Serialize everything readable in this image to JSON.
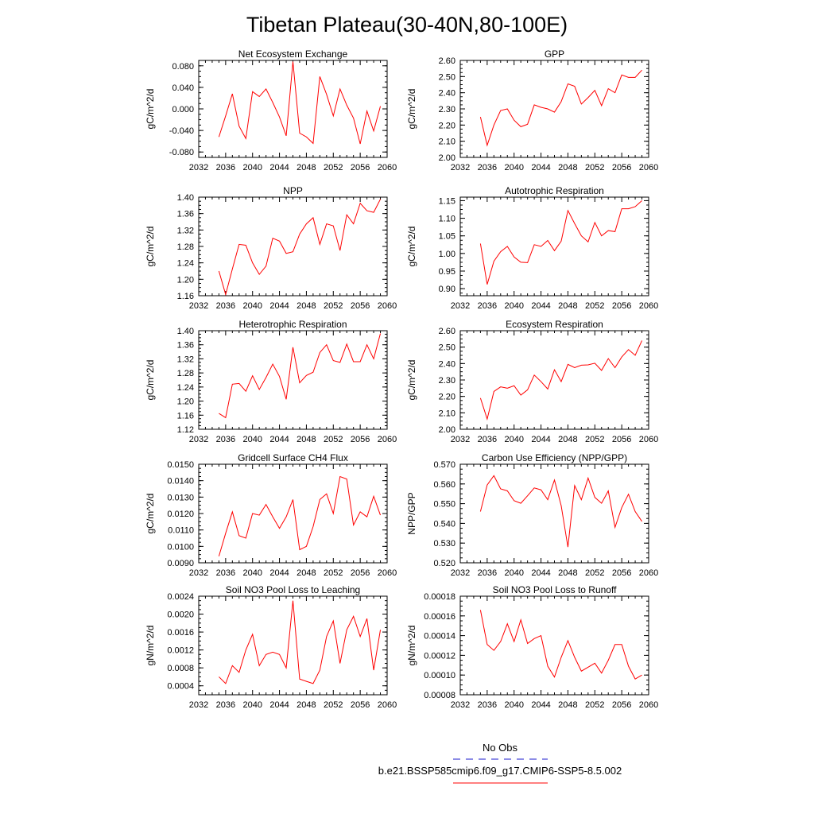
{
  "figure": {
    "title": "Tibetan Plateau(30-40N,80-100E)",
    "legend": {
      "obs_label": "No Obs",
      "obs_color": "#1a1acc",
      "model_label": "b.e21.BSSP585cmip6.f09_g17.CMIP6-SSP5-8.5.002",
      "model_color": "#ff0000"
    }
  },
  "chart_data": [
    {
      "type": "line",
      "title": "Net Ecosystem Exchange",
      "ylabel": "gC/m^2/d",
      "xlim": [
        2032,
        2060
      ],
      "xticks": [
        "2032",
        "2036",
        "2040",
        "2044",
        "2048",
        "2052",
        "2056",
        "2060"
      ],
      "ylim": [
        -0.09,
        0.09
      ],
      "yticks": [
        "-0.080",
        "-0.040",
        "0.000",
        "0.040",
        "0.080"
      ],
      "x": [
        2035,
        2036,
        2037,
        2038,
        2039,
        2040,
        2041,
        2042,
        2043,
        2044,
        2045,
        2046,
        2047,
        2048,
        2049,
        2050,
        2051,
        2052,
        2053,
        2054,
        2055,
        2056,
        2057,
        2058,
        2059
      ],
      "series": [
        {
          "color": "#ff0000",
          "values": [
            -0.052,
            -0.013,
            0.028,
            -0.032,
            -0.055,
            0.032,
            0.023,
            0.037,
            0.012,
            -0.015,
            -0.05,
            0.088,
            -0.045,
            -0.052,
            -0.064,
            0.06,
            0.027,
            -0.013,
            0.037,
            0.007,
            -0.017,
            -0.065,
            -0.004,
            -0.041,
            0.005
          ]
        }
      ]
    },
    {
      "type": "line",
      "title": "GPP",
      "ylabel": "gC/m^2/d",
      "xlim": [
        2032,
        2060
      ],
      "xticks": [
        "2032",
        "2036",
        "2040",
        "2044",
        "2048",
        "2052",
        "2056",
        "2060"
      ],
      "ylim": [
        2.0,
        2.6
      ],
      "yticks": [
        "2.00",
        "2.10",
        "2.20",
        "2.30",
        "2.40",
        "2.50",
        "2.60"
      ],
      "x": [
        2035,
        2036,
        2037,
        2038,
        2039,
        2040,
        2041,
        2042,
        2043,
        2044,
        2045,
        2046,
        2047,
        2048,
        2049,
        2050,
        2051,
        2052,
        2053,
        2054,
        2055,
        2056,
        2057,
        2058,
        2059
      ],
      "series": [
        {
          "color": "#ff0000",
          "values": [
            2.25,
            2.075,
            2.2,
            2.29,
            2.3,
            2.23,
            2.19,
            2.205,
            2.325,
            2.31,
            2.3,
            2.28,
            2.345,
            2.455,
            2.44,
            2.33,
            2.37,
            2.415,
            2.32,
            2.425,
            2.4,
            2.51,
            2.495,
            2.495,
            2.54
          ]
        }
      ]
    },
    {
      "type": "line",
      "title": "NPP",
      "ylabel": "gC/m^2/d",
      "xlim": [
        2032,
        2060
      ],
      "xticks": [
        "2032",
        "2036",
        "2040",
        "2044",
        "2048",
        "2052",
        "2056",
        "2060"
      ],
      "ylim": [
        1.16,
        1.4
      ],
      "yticks": [
        "1.16",
        "1.20",
        "1.24",
        "1.28",
        "1.32",
        "1.36",
        "1.40"
      ],
      "x": [
        2035,
        2036,
        2037,
        2038,
        2039,
        2040,
        2041,
        2042,
        2043,
        2044,
        2045,
        2046,
        2047,
        2048,
        2049,
        2050,
        2051,
        2052,
        2053,
        2054,
        2055,
        2056,
        2057,
        2058,
        2059
      ],
      "series": [
        {
          "color": "#ff0000",
          "values": [
            1.22,
            1.163,
            1.225,
            1.285,
            1.283,
            1.24,
            1.212,
            1.232,
            1.3,
            1.293,
            1.263,
            1.267,
            1.31,
            1.335,
            1.35,
            1.285,
            1.335,
            1.33,
            1.27,
            1.357,
            1.335,
            1.385,
            1.367,
            1.363,
            1.395
          ]
        }
      ]
    },
    {
      "type": "line",
      "title": "Autotrophic Respiration",
      "ylabel": "gC/m^2/d",
      "xlim": [
        2032,
        2060
      ],
      "xticks": [
        "2032",
        "2036",
        "2040",
        "2044",
        "2048",
        "2052",
        "2056",
        "2060"
      ],
      "ylim": [
        0.88,
        1.16
      ],
      "yticks": [
        "0.90",
        "0.95",
        "1.00",
        "1.05",
        "1.10",
        "1.15"
      ],
      "x": [
        2035,
        2036,
        2037,
        2038,
        2039,
        2040,
        2041,
        2042,
        2043,
        2044,
        2045,
        2046,
        2047,
        2048,
        2049,
        2050,
        2051,
        2052,
        2053,
        2054,
        2055,
        2056,
        2057,
        2058,
        2059
      ],
      "series": [
        {
          "color": "#ff0000",
          "values": [
            1.028,
            0.912,
            0.978,
            1.005,
            1.02,
            0.99,
            0.975,
            0.974,
            1.025,
            1.02,
            1.037,
            1.008,
            1.035,
            1.122,
            1.085,
            1.05,
            1.033,
            1.088,
            1.05,
            1.065,
            1.062,
            1.127,
            1.127,
            1.133,
            1.15
          ]
        }
      ]
    },
    {
      "type": "line",
      "title": "Heterotrophic Respiration",
      "ylabel": "gC/m^2/d",
      "xlim": [
        2032,
        2060
      ],
      "xticks": [
        "2032",
        "2036",
        "2040",
        "2044",
        "2048",
        "2052",
        "2056",
        "2060"
      ],
      "ylim": [
        1.12,
        1.4
      ],
      "yticks": [
        "1.12",
        "1.16",
        "1.20",
        "1.24",
        "1.28",
        "1.32",
        "1.36",
        "1.40"
      ],
      "x": [
        2035,
        2036,
        2037,
        2038,
        2039,
        2040,
        2041,
        2042,
        2043,
        2044,
        2045,
        2046,
        2047,
        2048,
        2049,
        2050,
        2051,
        2052,
        2053,
        2054,
        2055,
        2056,
        2057,
        2058,
        2059
      ],
      "series": [
        {
          "color": "#ff0000",
          "values": [
            1.165,
            1.153,
            1.248,
            1.25,
            1.228,
            1.272,
            1.233,
            1.267,
            1.305,
            1.27,
            1.205,
            1.353,
            1.252,
            1.273,
            1.282,
            1.338,
            1.36,
            1.315,
            1.31,
            1.362,
            1.312,
            1.312,
            1.36,
            1.32,
            1.392
          ]
        }
      ]
    },
    {
      "type": "line",
      "title": "Ecosystem Respiration",
      "ylabel": "gC/m^2/d",
      "xlim": [
        2032,
        2060
      ],
      "xticks": [
        "2032",
        "2036",
        "2040",
        "2044",
        "2048",
        "2052",
        "2056",
        "2060"
      ],
      "ylim": [
        2.0,
        2.6
      ],
      "yticks": [
        "2.00",
        "2.10",
        "2.20",
        "2.30",
        "2.40",
        "2.50",
        "2.60"
      ],
      "x": [
        2035,
        2036,
        2037,
        2038,
        2039,
        2040,
        2041,
        2042,
        2043,
        2044,
        2045,
        2046,
        2047,
        2048,
        2049,
        2050,
        2051,
        2052,
        2053,
        2054,
        2055,
        2056,
        2057,
        2058,
        2059
      ],
      "series": [
        {
          "color": "#ff0000",
          "values": [
            2.19,
            2.062,
            2.23,
            2.258,
            2.25,
            2.265,
            2.208,
            2.24,
            2.33,
            2.29,
            2.245,
            2.362,
            2.29,
            2.395,
            2.375,
            2.39,
            2.392,
            2.402,
            2.358,
            2.43,
            2.375,
            2.44,
            2.485,
            2.45,
            2.54
          ]
        }
      ]
    },
    {
      "type": "line",
      "title": "Gridcell Surface CH4 Flux",
      "ylabel": "gC/m^2/d",
      "xlim": [
        2032,
        2060
      ],
      "xticks": [
        "2032",
        "2036",
        "2040",
        "2044",
        "2048",
        "2052",
        "2056",
        "2060"
      ],
      "ylim": [
        0.009,
        0.015
      ],
      "yticks": [
        "0.0090",
        "0.0100",
        "0.0110",
        "0.0120",
        "0.0130",
        "0.0140",
        "0.0150"
      ],
      "x": [
        2035,
        2036,
        2037,
        2038,
        2039,
        2040,
        2041,
        2042,
        2043,
        2044,
        2045,
        2046,
        2047,
        2048,
        2049,
        2050,
        2051,
        2052,
        2053,
        2054,
        2055,
        2056,
        2057,
        2058,
        2059
      ],
      "series": [
        {
          "color": "#ff0000",
          "values": [
            0.0094,
            0.0108,
            0.0121,
            0.01065,
            0.0105,
            0.012,
            0.0119,
            0.01255,
            0.0118,
            0.0111,
            0.0118,
            0.01285,
            0.0098,
            0.01,
            0.0112,
            0.01285,
            0.0132,
            0.012,
            0.01425,
            0.0141,
            0.0113,
            0.0121,
            0.0118,
            0.01305,
            0.0119
          ]
        }
      ]
    },
    {
      "type": "line",
      "title": "Carbon Use Efficiency (NPP/GPP)",
      "ylabel": "NPP/GPP",
      "xlim": [
        2032,
        2060
      ],
      "xticks": [
        "2032",
        "2036",
        "2040",
        "2044",
        "2048",
        "2052",
        "2056",
        "2060"
      ],
      "ylim": [
        0.52,
        0.57
      ],
      "yticks": [
        "0.520",
        "0.530",
        "0.540",
        "0.550",
        "0.560",
        "0.570"
      ],
      "x": [
        2035,
        2036,
        2037,
        2038,
        2039,
        2040,
        2041,
        2042,
        2043,
        2044,
        2045,
        2046,
        2047,
        2048,
        2049,
        2050,
        2051,
        2052,
        2053,
        2054,
        2055,
        2056,
        2057,
        2058,
        2059
      ],
      "series": [
        {
          "color": "#ff0000",
          "values": [
            0.546,
            0.5595,
            0.5642,
            0.5575,
            0.5565,
            0.5515,
            0.5502,
            0.554,
            0.558,
            0.557,
            0.552,
            0.562,
            0.549,
            0.528,
            0.5592,
            0.552,
            0.563,
            0.5532,
            0.5502,
            0.5565,
            0.538,
            0.548,
            0.5548,
            0.546,
            0.541
          ]
        }
      ]
    },
    {
      "type": "line",
      "title": "Soil NO3 Pool Loss to Leaching",
      "ylabel": "gN/m^2/d",
      "xlim": [
        2032,
        2060
      ],
      "xticks": [
        "2032",
        "2036",
        "2040",
        "2044",
        "2048",
        "2052",
        "2056",
        "2060"
      ],
      "ylim": [
        0.0002,
        0.0024
      ],
      "yticks": [
        "0.0004",
        "0.0008",
        "0.0012",
        "0.0016",
        "0.0020",
        "0.0024"
      ],
      "x": [
        2035,
        2036,
        2037,
        2038,
        2039,
        2040,
        2041,
        2042,
        2043,
        2044,
        2045,
        2046,
        2047,
        2048,
        2049,
        2050,
        2051,
        2052,
        2053,
        2054,
        2055,
        2056,
        2057,
        2058,
        2059
      ],
      "series": [
        {
          "color": "#ff0000",
          "values": [
            0.0006,
            0.00045,
            0.00085,
            0.0007,
            0.0012,
            0.00155,
            0.00085,
            0.0011,
            0.00115,
            0.0011,
            0.0008,
            0.0023,
            0.00055,
            0.0005,
            0.00045,
            0.00075,
            0.0015,
            0.00185,
            0.0009,
            0.00165,
            0.00195,
            0.0015,
            0.0019,
            0.00075,
            0.00165
          ]
        }
      ]
    },
    {
      "type": "line",
      "title": "Soil NO3 Pool Loss to Runoff",
      "ylabel": "gN/m^2/d",
      "xlim": [
        2032,
        2060
      ],
      "xticks": [
        "2032",
        "2036",
        "2040",
        "2044",
        "2048",
        "2052",
        "2056",
        "2060"
      ],
      "ylim": [
        8e-05,
        0.00018
      ],
      "yticks": [
        "0.00008",
        "0.00010",
        "0.00012",
        "0.00014",
        "0.00016",
        "0.00018"
      ],
      "x": [
        2035,
        2036,
        2037,
        2038,
        2039,
        2040,
        2041,
        2042,
        2043,
        2044,
        2045,
        2046,
        2047,
        2048,
        2049,
        2050,
        2051,
        2052,
        2053,
        2054,
        2055,
        2056,
        2057,
        2058,
        2059
      ],
      "series": [
        {
          "color": "#ff0000",
          "values": [
            0.000166,
            0.000131,
            0.000125,
            0.000134,
            0.000152,
            0.000134,
            0.000156,
            0.000132,
            0.000137,
            0.00014,
            0.000109,
            9.8e-05,
            0.000118,
            0.000135,
            0.000118,
            0.000104,
            0.000108,
            0.000112,
            0.000102,
            0.000115,
            0.000131,
            0.000131,
            0.000109,
            9.6e-05,
            0.0001
          ]
        }
      ]
    }
  ]
}
